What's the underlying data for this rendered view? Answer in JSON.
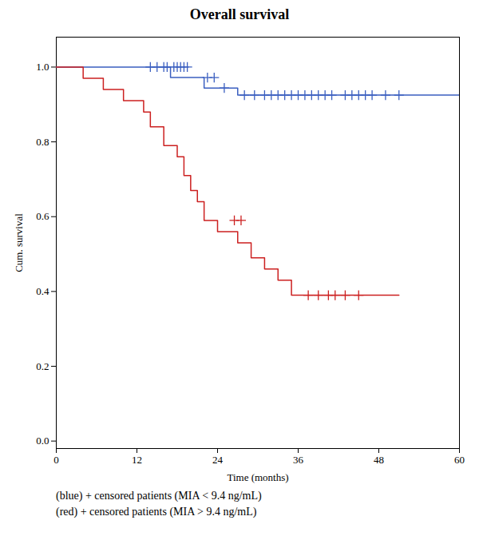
{
  "chart_data": {
    "type": "line",
    "title": "Overall survival",
    "xlabel": "Time (months)",
    "ylabel": "Cum. survival",
    "xlim": [
      0,
      60
    ],
    "ylim": [
      -0.02,
      1.08
    ],
    "xticks": [
      0,
      12,
      24,
      36,
      48,
      60
    ],
    "yticks": [
      {
        "value": 0.0,
        "label": "0.0"
      },
      0.2,
      0.4,
      0.6,
      0.8,
      {
        "value": 1.0,
        "label": "1.0"
      }
    ],
    "grid": false,
    "annotations": [
      "(blue) + censored patients (MIA < 9.4 ng/mL)",
      "(red) + censored patients (MIA > 9.4 ng/mL)"
    ],
    "series": [
      {
        "type": "step",
        "color": "#3B5FC0",
        "x": [
          0,
          7,
          17,
          17,
          22,
          22,
          27,
          27,
          60
        ],
        "values": [
          1.0,
          1.0,
          1.0,
          0.972,
          0.972,
          0.944,
          0.944,
          0.925,
          0.925
        ]
      },
      {
        "type": "scatter",
        "marker": "plus",
        "color": "#3B5FC0",
        "x": [
          14,
          15,
          16,
          16.5,
          17.5,
          18,
          18.5,
          19,
          19.5,
          22.5,
          23.5,
          25,
          28,
          29.5,
          31,
          32,
          33,
          34,
          35,
          36,
          37,
          38,
          39,
          40,
          41,
          43,
          44,
          45,
          46,
          47,
          49,
          51
        ],
        "values": [
          1.0,
          1.0,
          1.0,
          1.0,
          1.0,
          1.0,
          1.0,
          1.0,
          1.0,
          0.972,
          0.972,
          0.944,
          0.925,
          0.925,
          0.925,
          0.925,
          0.925,
          0.925,
          0.925,
          0.925,
          0.925,
          0.925,
          0.925,
          0.925,
          0.925,
          0.925,
          0.925,
          0.925,
          0.925,
          0.925,
          0.925,
          0.925
        ]
      },
      {
        "type": "step",
        "color": "#CC2020",
        "x": [
          0,
          4,
          4,
          7,
          7,
          10,
          10,
          13,
          13,
          14,
          14,
          16,
          16,
          18,
          18,
          19,
          19,
          20,
          20,
          21,
          21,
          22,
          22,
          24,
          24,
          27,
          27,
          29,
          29,
          31,
          31,
          33,
          33,
          35,
          35,
          36,
          36,
          51
        ],
        "values": [
          1.0,
          1.0,
          0.97,
          0.97,
          0.94,
          0.94,
          0.91,
          0.91,
          0.88,
          0.88,
          0.84,
          0.84,
          0.79,
          0.79,
          0.76,
          0.76,
          0.71,
          0.71,
          0.67,
          0.67,
          0.64,
          0.64,
          0.59,
          0.59,
          0.56,
          0.56,
          0.53,
          0.53,
          0.49,
          0.49,
          0.46,
          0.46,
          0.43,
          0.43,
          0.39,
          0.39,
          0.39,
          0.39
        ]
      },
      {
        "type": "scatter",
        "marker": "plus",
        "color": "#CC2020",
        "x": [
          26.5,
          27.5,
          37.5,
          39,
          40.5,
          41.5,
          43,
          45
        ],
        "values": [
          0.59,
          0.59,
          0.39,
          0.39,
          0.39,
          0.39,
          0.39,
          0.39
        ]
      }
    ]
  }
}
